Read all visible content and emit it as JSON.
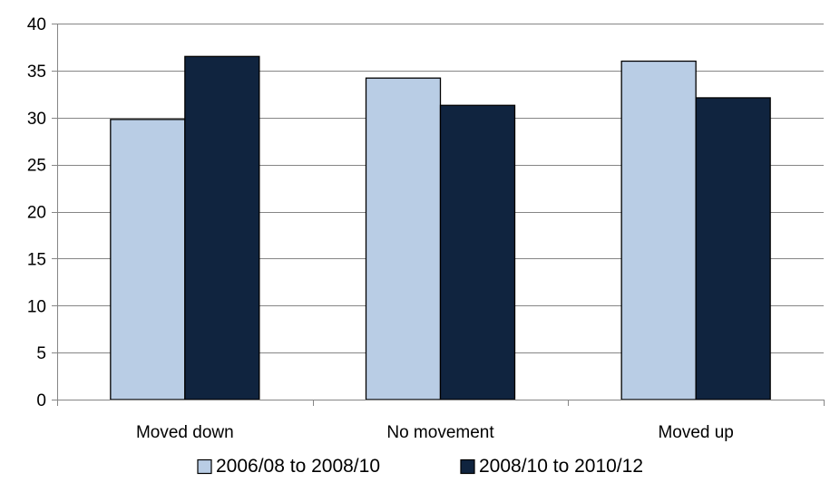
{
  "chart_data": {
    "type": "bar",
    "title": "",
    "xlabel": "",
    "ylabel": "",
    "categories": [
      "Moved down",
      "No movement",
      "Moved up"
    ],
    "series": [
      {
        "name": "2006/08 to 2008/10",
        "values": [
          29.8,
          34.2,
          36.0
        ],
        "color": "#b9cde5"
      },
      {
        "name": "2008/10 to 2010/12",
        "values": [
          36.5,
          31.3,
          32.1
        ],
        "color": "#10243f"
      }
    ],
    "ylim": [
      0,
      40
    ],
    "yticks": [
      0,
      5,
      10,
      15,
      20,
      25,
      30,
      35,
      40
    ],
    "grid": true,
    "gridline_color": "#868686",
    "bar_outline_color": "#000000",
    "legend_position": "bottom"
  }
}
